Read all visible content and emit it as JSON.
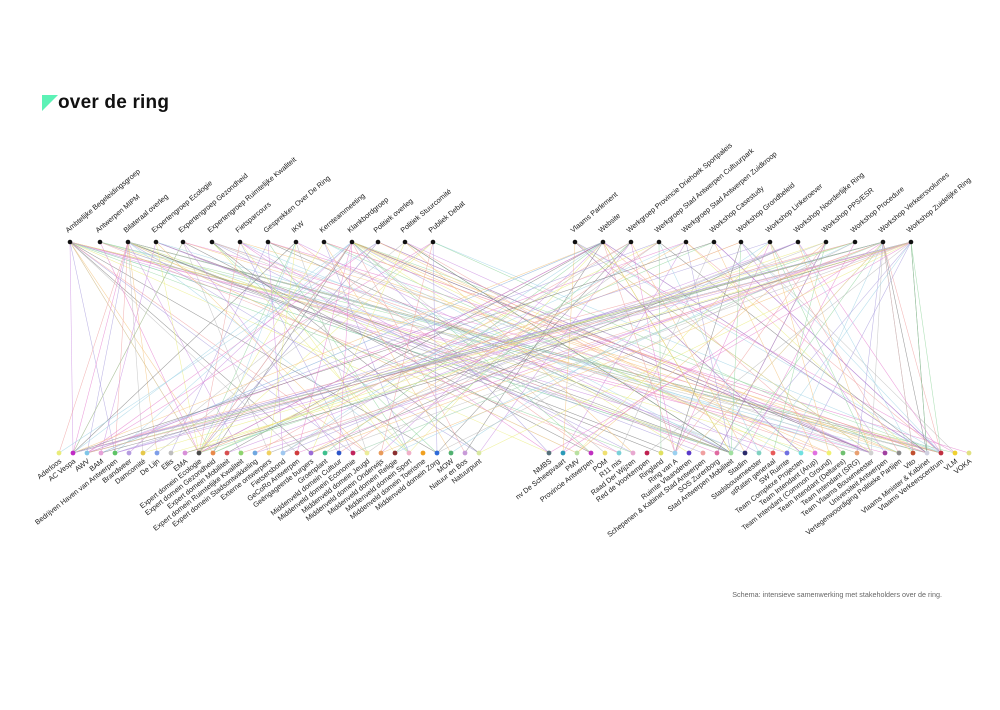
{
  "header": {
    "title": "over de ring",
    "logo_color": "#5cf2b6"
  },
  "caption": "Schema: intensieve samenwerking met stakeholders over de ring.",
  "link_palette": [
    "#e57fcf",
    "#a79bdc",
    "#9fd3e6",
    "#e9ec7a",
    "#ef9f9f",
    "#8fd49b",
    "#b9b9b9",
    "#7a7a7a",
    "#c98ce0",
    "#f4c27a"
  ],
  "top_nodes": [
    {
      "label": "Ambtelijke Begeleidingsgroep",
      "color": "#111111"
    },
    {
      "label": "Antwerpen MIPM",
      "color": "#111111"
    },
    {
      "label": "Bilateraal overleg",
      "color": "#111111"
    },
    {
      "label": "Expertengroep Ecologie",
      "color": "#111111"
    },
    {
      "label": "Expertengroep Gezondheid",
      "color": "#111111"
    },
    {
      "label": "Expertengroep Ruimtelijke Kwaliteit",
      "color": "#111111"
    },
    {
      "label": "Fietsparcours",
      "color": "#111111"
    },
    {
      "label": "Gesprekken Over De Ring",
      "color": "#111111"
    },
    {
      "label": "IKW",
      "color": "#111111"
    },
    {
      "label": "Kernteammeeting",
      "color": "#111111"
    },
    {
      "label": "Klankbordgroep",
      "color": "#111111"
    },
    {
      "label": "Politiek overleg",
      "color": "#111111"
    },
    {
      "label": "Politiek Stuurcomité",
      "color": "#111111"
    },
    {
      "label": "Publiek Debat",
      "color": "#111111"
    },
    {
      "label": "Vlaams Parlement",
      "color": "#111111"
    },
    {
      "label": "Website",
      "color": "#111111"
    },
    {
      "label": "Werkgroep Provincie Driehoek Sportpaleis",
      "color": "#111111"
    },
    {
      "label": "Werkgroep Stad Antwerpen Cultuurpark",
      "color": "#111111"
    },
    {
      "label": "Werkgroep Stad Antwerpen Zuidkroop",
      "color": "#111111"
    },
    {
      "label": "Workshop Casestudy",
      "color": "#111111"
    },
    {
      "label": "Workshop Grondbeleid",
      "color": "#111111"
    },
    {
      "label": "Workshop Linkeroever",
      "color": "#111111"
    },
    {
      "label": "Workshop Noorderlijke Ring",
      "color": "#111111"
    },
    {
      "label": "Workshop PPS/ESR",
      "color": "#111111"
    },
    {
      "label": "Workshop Procedure",
      "color": "#111111"
    },
    {
      "label": "Workshop Verkeersvolumes",
      "color": "#111111"
    },
    {
      "label": "Workshop Zuidelijke Ring",
      "color": "#111111"
    }
  ],
  "bottom_nodes": [
    {
      "label": "Aderloos",
      "color": "#e9ec7a"
    },
    {
      "label": "AC Vespa",
      "color": "#c02bc4"
    },
    {
      "label": "AWV",
      "color": "#7fc6e8"
    },
    {
      "label": "BAM",
      "color": "#e6a1d8"
    },
    {
      "label": "Bedrijven Haven van Antwerpen",
      "color": "#5ec466"
    },
    {
      "label": "Brandweer",
      "color": "#b59ce0"
    },
    {
      "label": "Damcomité",
      "color": "#e6c84a"
    },
    {
      "label": "De Lijn",
      "color": "#7e9ee8"
    },
    {
      "label": "Ellis",
      "color": "#bdbdbd"
    },
    {
      "label": "EMA",
      "color": "#d88fd8"
    },
    {
      "label": "Expert domein Ecologie",
      "color": "#4a4a4a"
    },
    {
      "label": "Expert domein Gezondheid",
      "color": "#e88a4a"
    },
    {
      "label": "Expert domein Mobiliteit",
      "color": "#d85050"
    },
    {
      "label": "Expert domein Ruimtelijke Kwaliteit",
      "color": "#8ed36e"
    },
    {
      "label": "Expert domein Stadsontwikkeling",
      "color": "#6fa7e0"
    },
    {
      "label": "Externe ontwerpers",
      "color": "#f0d060"
    },
    {
      "label": "Fietsersbond",
      "color": "#a0c8f0"
    },
    {
      "label": "GeCoRo Antwerpen",
      "color": "#d03c3c"
    },
    {
      "label": "Geëngageerde burgers",
      "color": "#9b6bd6"
    },
    {
      "label": "Groenplant",
      "color": "#3ec08e"
    },
    {
      "label": "Middenveld domein Cultuur",
      "color": "#2c55c8"
    },
    {
      "label": "Middenveld domein Economie",
      "color": "#c0245c"
    },
    {
      "label": "Middenveld domein Jeugd",
      "color": "#ecec9a"
    },
    {
      "label": "Middenveld domein Onderwijs",
      "color": "#e89a5a"
    },
    {
      "label": "Middenveld domein Religie",
      "color": "#8a2f2f"
    },
    {
      "label": "Middenveld domein Sport",
      "color": "#f0b0c8"
    },
    {
      "label": "Middenveld domein Toerisme",
      "color": "#f0a020"
    },
    {
      "label": "Middenveld domein Zorg",
      "color": "#2f6bd8"
    },
    {
      "label": "MOW",
      "color": "#50b070"
    },
    {
      "label": "Natuur en Bos",
      "color": "#c89ad8"
    },
    {
      "label": "Natuurpunt",
      "color": "#d8e8a0"
    },
    {
      "label": "NMBS",
      "color": "#56707a"
    },
    {
      "label": "nv De Scheepvaart",
      "color": "#2c9ab8"
    },
    {
      "label": "PMV",
      "color": "#b8e0a0"
    },
    {
      "label": "Provincie Antwerpen",
      "color": "#c030c0"
    },
    {
      "label": "POM",
      "color": "#f0e070"
    },
    {
      "label": "R11 mis",
      "color": "#7ad0d8"
    },
    {
      "label": "Raad Der Wijzen",
      "color": "#e8a8d0"
    },
    {
      "label": "Red de Voorkempen",
      "color": "#c02050"
    },
    {
      "label": "Ringland",
      "color": "#e0e060"
    },
    {
      "label": "Ring van A",
      "color": "#9ad0f0"
    },
    {
      "label": "Ruimte Vlaanderen",
      "color": "#5a3ac8"
    },
    {
      "label": "Schepenen & Kabinet Stad Antwerpen",
      "color": "#f0a0a0"
    },
    {
      "label": "SOS Zurenborg",
      "color": "#e06aa0"
    },
    {
      "label": "Stad Antwerpen Mobiliteit",
      "color": "#a0e0a0"
    },
    {
      "label": "Stadim",
      "color": "#2a2a6a"
    },
    {
      "label": "Stadsbouwmeester",
      "color": "#80d0c0"
    },
    {
      "label": "stRaten generaal",
      "color": "#e85a5a"
    },
    {
      "label": "SW Ruimte",
      "color": "#7070e0"
    },
    {
      "label": "Team Complexe Projecten",
      "color": "#70e0e0"
    },
    {
      "label": "Team Intendant (Arup)",
      "color": "#e070e0"
    },
    {
      "label": "Team Intendant (Common Ground)",
      "color": "#f0f070"
    },
    {
      "label": "Team Intendant (Deltares)",
      "color": "#70c070"
    },
    {
      "label": "Team Intendant (SRG)",
      "color": "#e8a070"
    },
    {
      "label": "Team Vlaams Bouwmeester",
      "color": "#d0d0d0"
    },
    {
      "label": "Universiteit Antwerpen",
      "color": "#a040a0"
    },
    {
      "label": "Vertegenwoordiging Politieke Partijen",
      "color": "#8a8a8a"
    },
    {
      "label": "Vito",
      "color": "#c05030"
    },
    {
      "label": "Vlaams Minister & Kabinet",
      "color": "#d0d0e0"
    },
    {
      "label": "Vlaams Verkeerscentrum",
      "color": "#c03040"
    },
    {
      "label": "VLM",
      "color": "#f0d030"
    },
    {
      "label": "VOKA",
      "color": "#e0e080"
    }
  ]
}
